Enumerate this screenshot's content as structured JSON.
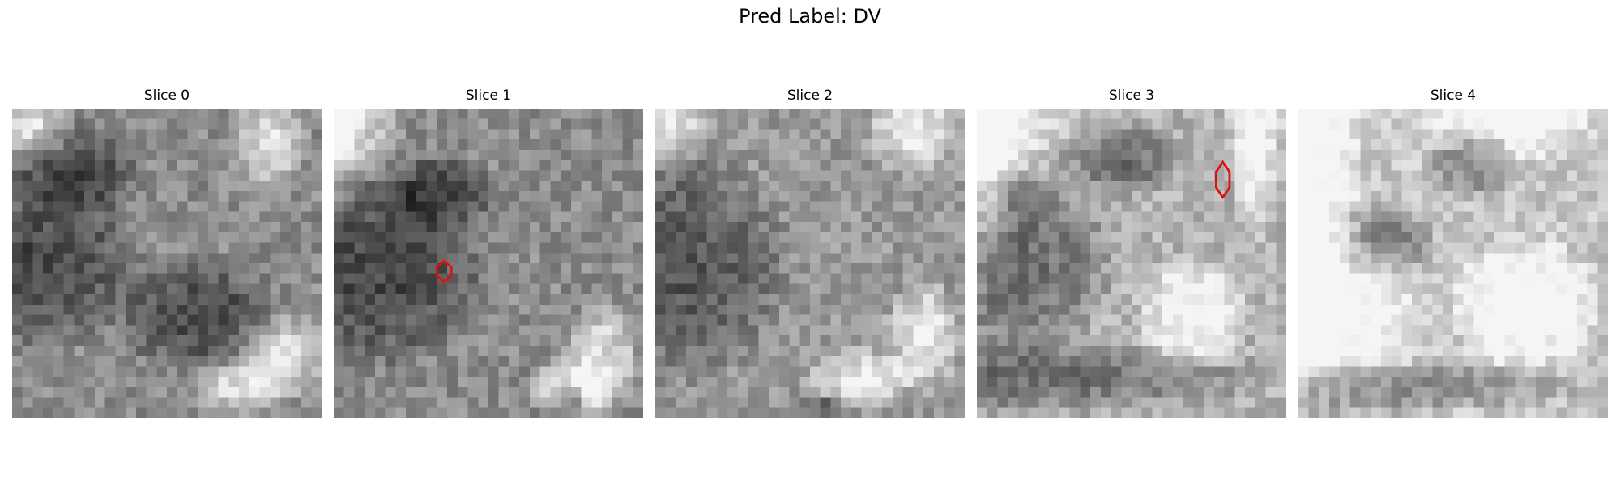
{
  "figure": {
    "title": "Pred Label: DV"
  },
  "slices": [
    {
      "title": "Slice 0",
      "seed": 11,
      "marker": null
    },
    {
      "title": "Slice 1",
      "seed": 23,
      "marker": {
        "color": "#e01010"
      }
    },
    {
      "title": "Slice 2",
      "seed": 37,
      "marker": null
    },
    {
      "title": "Slice 3",
      "seed": 41,
      "marker": {
        "color": "#e01010"
      }
    },
    {
      "title": "Slice 4",
      "seed": 59,
      "marker": null
    }
  ]
}
